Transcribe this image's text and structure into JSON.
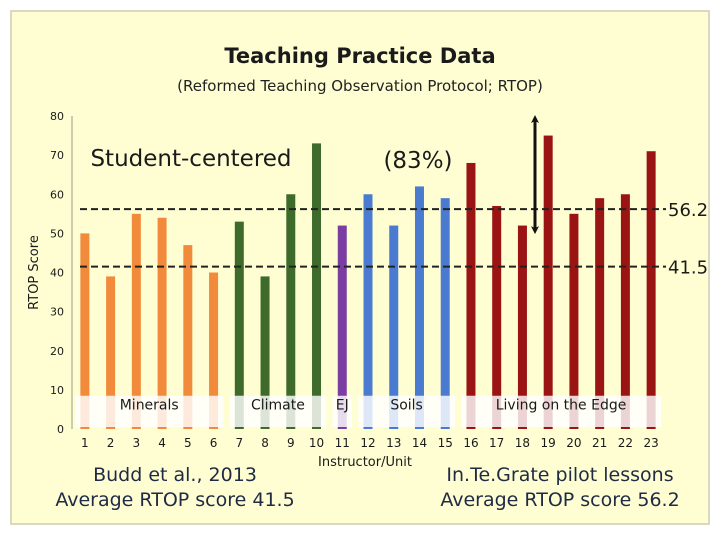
{
  "chart_data": {
    "type": "bar",
    "title": "Teaching Practice Data",
    "subtitle": "(Reformed Teaching Observation Protocol; RTOP)",
    "xlabel": "Instructor/Unit",
    "ylabel": "RTOP Score",
    "ylim": [
      0,
      80
    ],
    "yticks": [
      "0",
      "10",
      "20",
      "30",
      "40",
      "50",
      "60",
      "70",
      "80"
    ],
    "categories": [
      "1",
      "2",
      "3",
      "4",
      "5",
      "6",
      "7",
      "8",
      "9",
      "10",
      "11",
      "12",
      "13",
      "14",
      "15",
      "16",
      "17",
      "18",
      "19",
      "20",
      "21",
      "22",
      "23"
    ],
    "values": [
      50,
      39,
      55,
      54,
      47,
      40,
      53,
      39,
      60,
      73,
      52,
      60,
      52,
      62,
      59,
      68,
      57,
      52,
      75,
      55,
      59,
      60,
      71
    ],
    "bar_colors": [
      "#f28a3c",
      "#f28a3c",
      "#f28a3c",
      "#f28a3c",
      "#f28a3c",
      "#f28a3c",
      "#3e6b2b",
      "#3e6b2b",
      "#3e6b2b",
      "#3e6b2b",
      "#7a3ea3",
      "#4a7bd0",
      "#4a7bd0",
      "#4a7bd0",
      "#4a7bd0",
      "#9b1414",
      "#9b1414",
      "#9b1414",
      "#9b1414",
      "#9b1414",
      "#9b1414",
      "#9b1414",
      "#9b1414"
    ],
    "groups": [
      {
        "label": "Minerals",
        "from": 1,
        "to": 6
      },
      {
        "label": "Climate",
        "from": 7,
        "to": 10
      },
      {
        "label": "EJ",
        "from": 11,
        "to": 11
      },
      {
        "label": "Soils",
        "from": 12,
        "to": 15
      },
      {
        "label": "Living on the Edge",
        "from": 16,
        "to": 23
      }
    ],
    "reference_lines": [
      {
        "label": "56.2",
        "value": 56.2
      },
      {
        "label": "41.5",
        "value": 41.5
      }
    ],
    "annotations": {
      "student_centered": "Student-centered",
      "percent": "(83%)"
    },
    "arrow_range": [
      56.2,
      80
    ],
    "grid": false,
    "colors": {
      "plot_background": "#fefed2",
      "frame": "#d9d9c3",
      "group_band": "#ffffff",
      "arrow": "#111111"
    }
  },
  "captions": {
    "budd_line1": "Budd et al., 2013",
    "budd_line2": "Average RTOP score 41.5",
    "pilot_line1": "In.Te.Grate pilot lessons",
    "pilot_line2": "Average RTOP score 56.2"
  }
}
